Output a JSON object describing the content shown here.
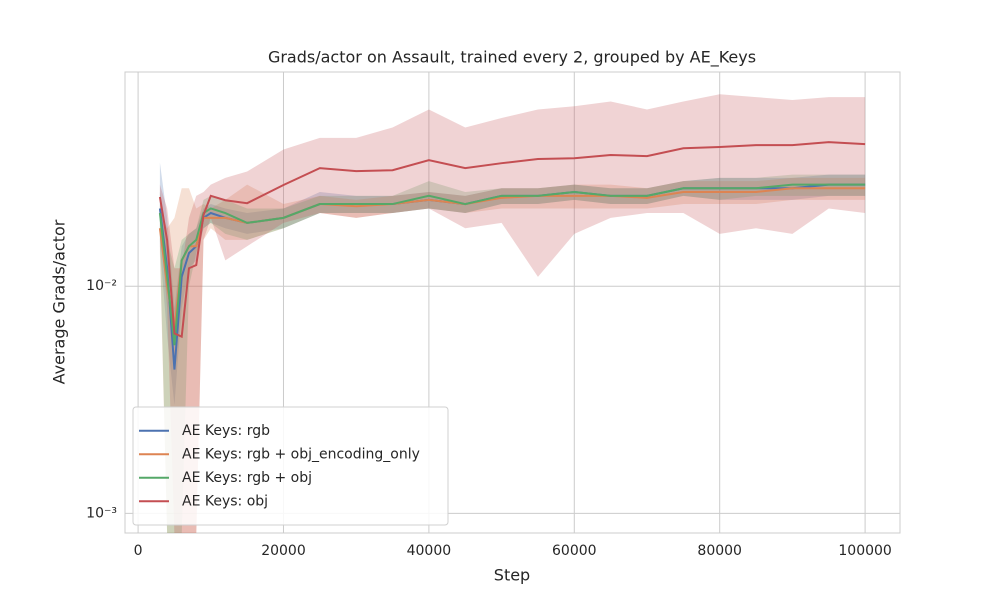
{
  "chart_data": {
    "type": "line",
    "title": "Grads/actor on Assault, trained every 2, grouped by AE_Keys",
    "x_label": "Step",
    "y_label": "Average Grads/actor",
    "log_y": true,
    "grid": true,
    "legend": "lower left",
    "xlim": [
      -1800,
      104800
    ],
    "xticks": [
      0,
      20000,
      40000,
      60000,
      80000,
      100000
    ],
    "ylim": [
      0.00082,
      0.0877
    ],
    "yticks": [
      {
        "value": 0.001,
        "label": "10⁻³"
      },
      {
        "value": 0.01,
        "label": "10⁻²"
      }
    ],
    "x": [
      3000,
      4000,
      5000,
      6000,
      7000,
      8000,
      9000,
      10000,
      12000,
      15000,
      20000,
      25000,
      30000,
      35000,
      40000,
      45000,
      50000,
      55000,
      60000,
      65000,
      70000,
      75000,
      80000,
      85000,
      90000,
      95000,
      100000
    ],
    "series": [
      {
        "name": "AE Keys: rgb",
        "color": "#4c72b0",
        "values": [
          0.022,
          0.012,
          0.0043,
          0.011,
          0.014,
          0.015,
          0.02,
          0.021,
          0.02,
          0.019,
          0.02,
          0.023,
          0.023,
          0.023,
          0.024,
          0.023,
          0.025,
          0.025,
          0.026,
          0.025,
          0.025,
          0.027,
          0.027,
          0.027,
          0.027,
          0.028,
          0.028
        ],
        "lower": [
          0.015,
          0.006,
          0.003,
          0.008,
          0.012,
          0.013,
          0.018,
          0.019,
          0.018,
          0.017,
          0.018,
          0.021,
          0.021,
          0.021,
          0.022,
          0.021,
          0.023,
          0.023,
          0.024,
          0.023,
          0.023,
          0.025,
          0.024,
          0.024,
          0.024,
          0.025,
          0.025
        ],
        "upper": [
          0.035,
          0.02,
          0.008,
          0.015,
          0.017,
          0.018,
          0.022,
          0.023,
          0.022,
          0.021,
          0.022,
          0.026,
          0.025,
          0.025,
          0.026,
          0.025,
          0.027,
          0.027,
          0.028,
          0.027,
          0.027,
          0.029,
          0.03,
          0.03,
          0.03,
          0.031,
          0.031
        ]
      },
      {
        "name": "AE Keys: rgb + obj_encoding_only",
        "color": "#dd8452",
        "values": [
          0.018,
          0.01,
          0.0065,
          0.013,
          0.015,
          0.015,
          0.02,
          0.02,
          0.02,
          0.019,
          0.02,
          0.023,
          0.0225,
          0.023,
          0.024,
          0.023,
          0.0245,
          0.025,
          0.025,
          0.025,
          0.0245,
          0.026,
          0.026,
          0.026,
          0.027,
          0.027,
          0.027
        ],
        "lower": [
          0.014,
          0.0008,
          0.0008,
          0.0008,
          0.0008,
          0.0008,
          0.016,
          0.018,
          0.016,
          0.016,
          0.018,
          0.021,
          0.02,
          0.021,
          0.022,
          0.021,
          0.022,
          0.022,
          0.022,
          0.022,
          0.022,
          0.023,
          0.023,
          0.023,
          0.024,
          0.024,
          0.024
        ],
        "upper": [
          0.022,
          0.018,
          0.02,
          0.027,
          0.027,
          0.022,
          0.023,
          0.022,
          0.024,
          0.028,
          0.023,
          0.025,
          0.024,
          0.025,
          0.026,
          0.025,
          0.027,
          0.027,
          0.028,
          0.028,
          0.027,
          0.029,
          0.029,
          0.029,
          0.03,
          0.03,
          0.03
        ]
      },
      {
        "name": "AE Keys: rgb + obj",
        "color": "#55a868",
        "values": [
          0.021,
          0.011,
          0.0055,
          0.013,
          0.015,
          0.016,
          0.021,
          0.022,
          0.021,
          0.019,
          0.02,
          0.023,
          0.023,
          0.023,
          0.025,
          0.023,
          0.025,
          0.025,
          0.026,
          0.025,
          0.025,
          0.027,
          0.027,
          0.027,
          0.028,
          0.028,
          0.028
        ],
        "lower": [
          0.016,
          0.0008,
          0.0008,
          0.0008,
          0.01,
          0.014,
          0.018,
          0.019,
          0.017,
          0.016,
          0.018,
          0.021,
          0.021,
          0.021,
          0.022,
          0.021,
          0.023,
          0.023,
          0.024,
          0.023,
          0.023,
          0.025,
          0.024,
          0.025,
          0.025,
          0.025,
          0.025
        ],
        "upper": [
          0.026,
          0.016,
          0.012,
          0.016,
          0.017,
          0.018,
          0.024,
          0.025,
          0.024,
          0.022,
          0.022,
          0.025,
          0.025,
          0.025,
          0.029,
          0.026,
          0.027,
          0.027,
          0.028,
          0.027,
          0.027,
          0.029,
          0.03,
          0.03,
          0.031,
          0.031,
          0.031
        ]
      },
      {
        "name": "AE Keys: obj",
        "color": "#c44e52",
        "values": [
          0.0247,
          0.0159,
          0.0062,
          0.006,
          0.012,
          0.0124,
          0.0206,
          0.025,
          0.0239,
          0.0232,
          0.0279,
          0.0331,
          0.0321,
          0.0324,
          0.0359,
          0.0331,
          0.0348,
          0.0363,
          0.0366,
          0.0378,
          0.0374,
          0.0405,
          0.041,
          0.0418,
          0.0418,
          0.0431,
          0.0422
        ],
        "lower": [
          0.02,
          0.008,
          0.0008,
          0.0008,
          0.0008,
          0.0008,
          0.016,
          0.02,
          0.013,
          0.015,
          0.019,
          0.021,
          0.02,
          0.021,
          0.022,
          0.018,
          0.019,
          0.011,
          0.017,
          0.02,
          0.021,
          0.021,
          0.017,
          0.018,
          0.017,
          0.022,
          0.021
        ],
        "upper": [
          0.028,
          0.022,
          0.012,
          0.012,
          0.02,
          0.025,
          0.026,
          0.028,
          0.03,
          0.032,
          0.04,
          0.045,
          0.045,
          0.05,
          0.06,
          0.05,
          0.055,
          0.06,
          0.062,
          0.065,
          0.06,
          0.065,
          0.07,
          0.068,
          0.066,
          0.068,
          0.068
        ]
      }
    ]
  }
}
